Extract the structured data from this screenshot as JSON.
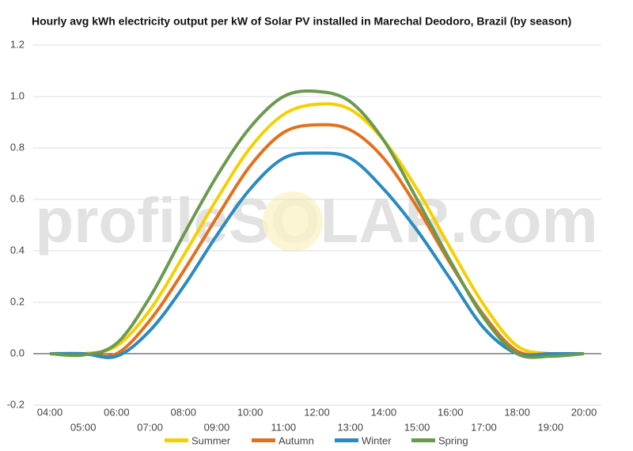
{
  "chart_data": {
    "type": "line",
    "title": "Hourly avg kWh electricity output per kW of Solar PV installed in Marechal Deodoro, Brazil (by season)",
    "watermark": "profileSOLAR.com",
    "categories": [
      "04:00",
      "05:00",
      "06:00",
      "07:00",
      "08:00",
      "09:00",
      "10:00",
      "11:00",
      "12:00",
      "13:00",
      "14:00",
      "15:00",
      "16:00",
      "17:00",
      "18:00",
      "19:00",
      "20:00"
    ],
    "series": [
      {
        "name": "Summer",
        "color": "#f5d000",
        "values": [
          0,
          0,
          0.03,
          0.17,
          0.38,
          0.6,
          0.8,
          0.93,
          0.97,
          0.95,
          0.83,
          0.64,
          0.41,
          0.19,
          0.03,
          0,
          0
        ]
      },
      {
        "name": "Autumn",
        "color": "#e2711d",
        "values": [
          0,
          0,
          0,
          0.13,
          0.32,
          0.53,
          0.73,
          0.86,
          0.89,
          0.87,
          0.76,
          0.57,
          0.35,
          0.15,
          0.01,
          0,
          0
        ]
      },
      {
        "name": "Winter",
        "color": "#2a8bbf",
        "values": [
          0,
          0,
          -0.01,
          0.09,
          0.26,
          0.46,
          0.64,
          0.76,
          0.78,
          0.76,
          0.64,
          0.48,
          0.29,
          0.1,
          0,
          0,
          0
        ]
      },
      {
        "name": "Spring",
        "color": "#6a9a4e",
        "values": [
          0,
          -0.005,
          0.04,
          0.22,
          0.46,
          0.69,
          0.88,
          1.0,
          1.02,
          0.98,
          0.83,
          0.6,
          0.36,
          0.14,
          0,
          -0.01,
          0
        ]
      }
    ],
    "ylim": [
      -0.2,
      1.2
    ],
    "yticks": [
      {
        "value": -0.2,
        "label": "-0.2"
      },
      {
        "value": 0,
        "label": "0.0"
      },
      0.2,
      0.4,
      0.6,
      0.8,
      {
        "value": 1,
        "label": "1.0"
      },
      1.2
    ],
    "grid": true,
    "legend": "bottom"
  }
}
